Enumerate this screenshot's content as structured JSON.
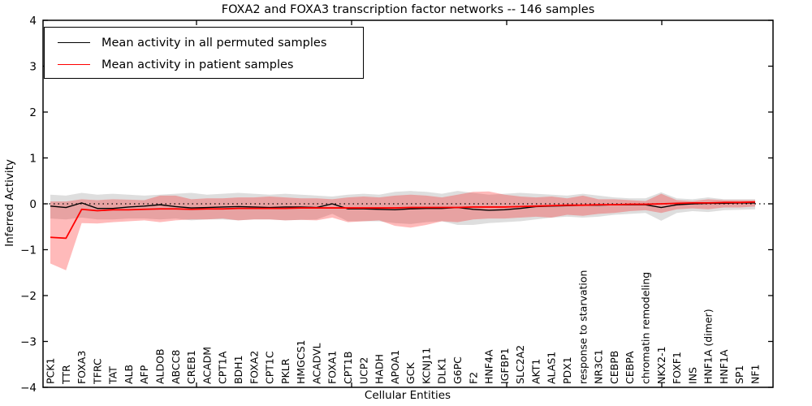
{
  "chart_data": {
    "type": "line",
    "title": "FOXA2 and FOXA3 transcription factor networks -- 146 samples",
    "xlabel": "Cellular Entities",
    "ylabel": "Inferred Activity",
    "ylim": [
      -4,
      4
    ],
    "ytick_labels": [
      "4",
      "3",
      "2",
      "1",
      "0",
      "−1",
      "−2",
      "−3",
      "−4"
    ],
    "ytick_values": [
      4,
      3,
      2,
      1,
      0,
      -1,
      -2,
      -3,
      -4
    ],
    "grid": false,
    "zero_reference_line": {
      "style": "dotted",
      "color": "#000000",
      "y": 0
    },
    "legend_position": "upper left",
    "categories": [
      "PCK1",
      "TTR",
      "FOXA3",
      "TFRC",
      "TAT",
      "ALB",
      "AFP",
      "ALDOB",
      "ABCC8",
      "CREB1",
      "ACADM",
      "CPT1A",
      "BDH1",
      "FOXA2",
      "CPT1C",
      "PKLR",
      "HMGCS1",
      "ACADVL",
      "FOXA1",
      "CPT1B",
      "UCP2",
      "HADH",
      "APOA1",
      "GCK",
      "KCNJ11",
      "DLK1",
      "G6PC",
      "F2",
      "HNF4A",
      "IGFBP1",
      "SLC2A2",
      "AKT1",
      "ALAS1",
      "PDX1",
      "response to starvation",
      "NR3C1",
      "CEBPB",
      "CEBPA",
      "chromatin remodeling",
      "NKX2-1",
      "FOXF1",
      "INS",
      "HNF1A (dimer)",
      "HNF1A",
      "SP1",
      "NF1"
    ],
    "series": [
      {
        "name": "Mean activity in all permuted samples",
        "color": "#000000",
        "band_color": "rgba(0,0,0,0.13)",
        "values": [
          -0.05,
          -0.08,
          0.02,
          -0.1,
          -0.1,
          -0.07,
          -0.05,
          -0.02,
          -0.06,
          -0.09,
          -0.08,
          -0.07,
          -0.06,
          -0.07,
          -0.08,
          -0.07,
          -0.07,
          -0.08,
          0.0,
          -0.11,
          -0.11,
          -0.12,
          -0.13,
          -0.11,
          -0.1,
          -0.1,
          -0.08,
          -0.12,
          -0.14,
          -0.13,
          -0.1,
          -0.06,
          -0.05,
          -0.04,
          -0.03,
          -0.03,
          -0.02,
          -0.02,
          -0.02,
          -0.08,
          -0.02,
          0.0,
          0.01,
          0.01,
          0.02,
          0.02
        ],
        "band_upper": [
          0.2,
          0.18,
          0.24,
          0.2,
          0.22,
          0.2,
          0.18,
          0.2,
          0.22,
          0.24,
          0.2,
          0.22,
          0.24,
          0.22,
          0.2,
          0.22,
          0.2,
          0.18,
          0.16,
          0.2,
          0.22,
          0.2,
          0.26,
          0.28,
          0.26,
          0.22,
          0.28,
          0.24,
          0.2,
          0.22,
          0.24,
          0.22,
          0.2,
          0.18,
          0.22,
          0.18,
          0.14,
          0.12,
          0.12,
          0.25,
          0.12,
          0.1,
          0.14,
          0.1,
          0.1,
          0.1
        ],
        "band_lower": [
          -0.32,
          -0.34,
          -0.3,
          -0.34,
          -0.34,
          -0.32,
          -0.32,
          -0.34,
          -0.32,
          -0.36,
          -0.34,
          -0.34,
          -0.36,
          -0.34,
          -0.34,
          -0.36,
          -0.35,
          -0.34,
          -0.22,
          -0.38,
          -0.38,
          -0.38,
          -0.42,
          -0.44,
          -0.4,
          -0.38,
          -0.46,
          -0.46,
          -0.42,
          -0.4,
          -0.38,
          -0.34,
          -0.3,
          -0.28,
          -0.3,
          -0.28,
          -0.24,
          -0.22,
          -0.2,
          -0.37,
          -0.2,
          -0.16,
          -0.18,
          -0.14,
          -0.13,
          -0.12
        ]
      },
      {
        "name": "Mean activity in patient samples",
        "color": "#ff0000",
        "band_color": "rgba(255,0,0,0.27)",
        "values": [
          -0.73,
          -0.75,
          -0.12,
          -0.15,
          -0.13,
          -0.13,
          -0.12,
          -0.11,
          -0.11,
          -0.12,
          -0.11,
          -0.11,
          -0.1,
          -0.1,
          -0.1,
          -0.1,
          -0.09,
          -0.09,
          -0.09,
          -0.09,
          -0.09,
          -0.09,
          -0.09,
          -0.08,
          -0.08,
          -0.08,
          -0.08,
          -0.07,
          -0.07,
          -0.07,
          -0.06,
          -0.05,
          -0.04,
          -0.03,
          -0.03,
          -0.02,
          -0.02,
          -0.01,
          -0.01,
          0.0,
          0.01,
          0.02,
          0.02,
          0.03,
          0.03,
          0.04
        ],
        "band_upper": [
          0.05,
          0.05,
          0.1,
          0.08,
          0.1,
          0.09,
          0.08,
          0.18,
          0.18,
          0.1,
          0.12,
          0.12,
          0.14,
          0.14,
          0.16,
          0.14,
          0.12,
          0.12,
          0.1,
          0.14,
          0.16,
          0.14,
          0.18,
          0.2,
          0.18,
          0.14,
          0.2,
          0.26,
          0.27,
          0.2,
          0.16,
          0.14,
          0.16,
          0.12,
          0.18,
          0.1,
          0.1,
          0.08,
          0.06,
          0.22,
          0.08,
          0.06,
          0.1,
          0.08,
          0.08,
          0.08
        ],
        "band_lower": [
          -1.3,
          -1.45,
          -0.42,
          -0.43,
          -0.4,
          -0.38,
          -0.36,
          -0.4,
          -0.36,
          -0.34,
          -0.34,
          -0.32,
          -0.36,
          -0.34,
          -0.34,
          -0.36,
          -0.35,
          -0.36,
          -0.3,
          -0.4,
          -0.38,
          -0.36,
          -0.48,
          -0.52,
          -0.46,
          -0.38,
          -0.4,
          -0.34,
          -0.32,
          -0.32,
          -0.3,
          -0.28,
          -0.3,
          -0.24,
          -0.26,
          -0.22,
          -0.2,
          -0.16,
          -0.14,
          -0.2,
          -0.12,
          -0.1,
          -0.12,
          -0.08,
          -0.08,
          -0.06
        ]
      }
    ]
  }
}
